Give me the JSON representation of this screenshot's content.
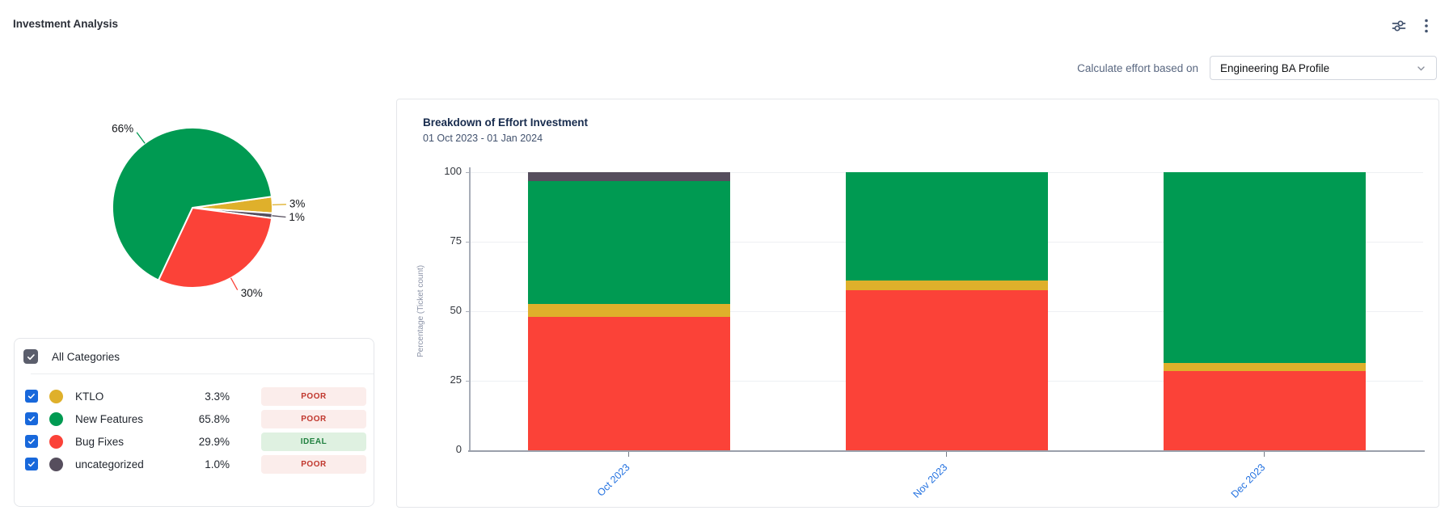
{
  "header": {
    "title": "Investment Analysis"
  },
  "controls": {
    "label": "Calculate effort based on",
    "selected_profile": "Engineering BA Profile"
  },
  "colors": {
    "green": "#009a52",
    "red": "#fb4238",
    "yellow": "#dfb02b",
    "slate": "#564e5d",
    "checkbox_blue": "#1868db",
    "all_checkbox": "#5b5e6c",
    "poor_text": "#c0362c",
    "poor_bg": "#fbedeb",
    "ideal_text": "#20803f",
    "ideal_bg": "#dff1e1",
    "axis_label_blue": "#2472e0"
  },
  "categories": {
    "all_label": "All Categories",
    "items": [
      {
        "label": "KTLO",
        "value": "3.3%",
        "rating": "POOR",
        "color": "yellow",
        "checked": true
      },
      {
        "label": "New Features",
        "value": "65.8%",
        "rating": "POOR",
        "color": "green",
        "checked": true
      },
      {
        "label": "Bug Fixes",
        "value": "29.9%",
        "rating": "IDEAL",
        "color": "red",
        "checked": true
      },
      {
        "label": "uncategorized",
        "value": "1.0%",
        "rating": "POOR",
        "color": "slate",
        "checked": true
      }
    ]
  },
  "chart_data": [
    {
      "type": "pie",
      "start_angle_deg": 82,
      "clockwise": true,
      "slices": [
        {
          "label": "KTLO",
          "pct": 3.3,
          "display": "3%",
          "color": "yellow"
        },
        {
          "label": "uncategorized",
          "pct": 1.0,
          "display": "1%",
          "color": "slate"
        },
        {
          "label": "Bug Fixes",
          "pct": 29.9,
          "display": "30%",
          "color": "red"
        },
        {
          "label": "New Features",
          "pct": 65.8,
          "display": "66%",
          "color": "green"
        }
      ]
    },
    {
      "type": "bar",
      "stacked": true,
      "title": "Breakdown of Effort Investment",
      "subtitle": "01 Oct 2023 - 01 Jan 2024",
      "categories": [
        "Oct 2023",
        "Nov 2023",
        "Dec 2023"
      ],
      "series": [
        {
          "name": "Bug Fixes",
          "color": "red",
          "values": [
            48,
            57.5,
            28.5
          ]
        },
        {
          "name": "KTLO",
          "color": "yellow",
          "values": [
            4.5,
            3.5,
            3
          ]
        },
        {
          "name": "New Features",
          "color": "green",
          "values": [
            44.2,
            39,
            68.5
          ]
        },
        {
          "name": "uncategorized",
          "color": "slate",
          "values": [
            3.3,
            0,
            0
          ]
        }
      ],
      "ylabel": "Percentage (Ticket count)",
      "yticks": [
        0,
        25,
        50,
        75,
        100
      ],
      "ylim": [
        0,
        100
      ],
      "grid": true,
      "legend_position": "none"
    }
  ]
}
